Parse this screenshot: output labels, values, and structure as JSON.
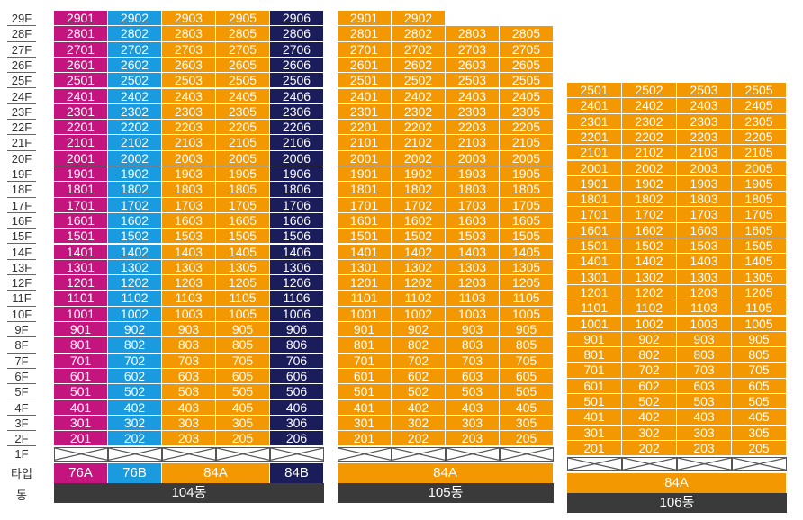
{
  "colors": {
    "magenta": "#c4157f",
    "cyan": "#1a9be0",
    "orange": "#f39800",
    "navy": "#1b1c5a",
    "dark": "#3a3a3a"
  },
  "row_labels": {
    "type": "타입",
    "building": "동"
  },
  "floors": [
    "29F",
    "28F",
    "27F",
    "26F",
    "25F",
    "24F",
    "23F",
    "22F",
    "21F",
    "20F",
    "19F",
    "18F",
    "17F",
    "16F",
    "15F",
    "14F",
    "13F",
    "12F",
    "11F",
    "10F",
    "9F",
    "8F",
    "7F",
    "6F",
    "5F",
    "4F",
    "3F",
    "2F",
    "1F"
  ],
  "buildings": [
    {
      "label": "104동",
      "columns": [
        {
          "line": "01",
          "color": "magenta"
        },
        {
          "line": "02",
          "color": "cyan"
        },
        {
          "line": "03",
          "color": "orange"
        },
        {
          "line": "05",
          "color": "orange"
        },
        {
          "line": "06",
          "color": "navy"
        }
      ],
      "max_floor": 29,
      "types": [
        {
          "label": "76A",
          "span": 1,
          "color": "magenta"
        },
        {
          "label": "76B",
          "span": 1,
          "color": "cyan"
        },
        {
          "label": "84A",
          "span": 2,
          "color": "orange"
        },
        {
          "label": "84B",
          "span": 1,
          "color": "navy"
        }
      ]
    },
    {
      "label": "105동",
      "columns": [
        {
          "line": "01",
          "color": "orange",
          "max_floor": 29
        },
        {
          "line": "02",
          "color": "orange",
          "max_floor": 29
        },
        {
          "line": "03",
          "color": "orange",
          "max_floor": 28
        },
        {
          "line": "05",
          "color": "orange",
          "max_floor": 28
        }
      ],
      "max_floor": 29,
      "types": [
        {
          "label": "84A",
          "span": 4,
          "color": "orange"
        }
      ]
    },
    {
      "label": "106동",
      "columns": [
        {
          "line": "01",
          "color": "orange"
        },
        {
          "line": "02",
          "color": "orange"
        },
        {
          "line": "03",
          "color": "orange"
        },
        {
          "line": "05",
          "color": "orange"
        }
      ],
      "max_floor": 25,
      "types": [
        {
          "label": "84A",
          "span": 4,
          "color": "orange"
        }
      ]
    }
  ]
}
